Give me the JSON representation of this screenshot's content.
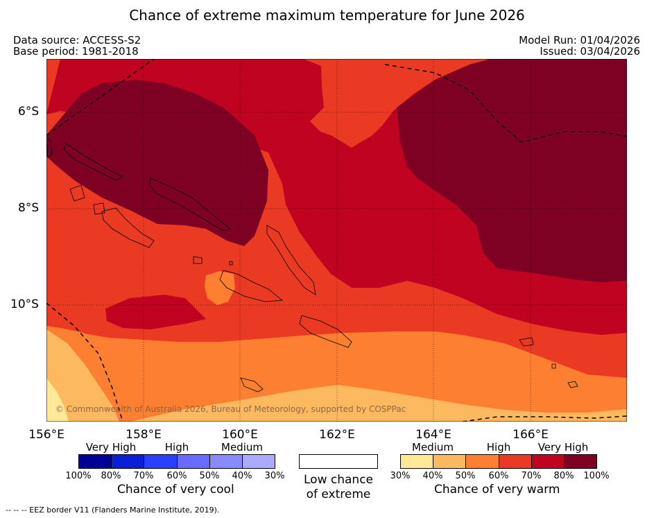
{
  "title": "Chance of extreme maximum temperature for June 2026",
  "meta": {
    "data_source": "Data source: ACCESS-S2",
    "base_period": "Base period: 1981-2018",
    "model_run": "Model Run: 01/04/2026",
    "issued": "Issued: 03/04/2026"
  },
  "axes": {
    "lat_labels": [
      "6°S",
      "8°S",
      "10°S"
    ],
    "lon_labels": [
      "156°E",
      "158°E",
      "160°E",
      "162°E",
      "164°E",
      "166°E"
    ]
  },
  "copyright": "© Commonwealth of Australia 2026, Bureau of Meteorology, supported by COSPPac",
  "legend": {
    "cool": {
      "categories": [
        "Very High",
        "High",
        "Medium"
      ],
      "percents": [
        "100%",
        "80%",
        "70%",
        "60%",
        "50%",
        "40%",
        "30%"
      ],
      "colors": [
        "#000099",
        "#0a1fd6",
        "#2a40ff",
        "#6a6aff",
        "#8a8aff",
        "#aaaaff"
      ],
      "caption": "Chance of very cool"
    },
    "neutral": {
      "caption_line1": "Low chance",
      "caption_line2": "of extreme"
    },
    "warm": {
      "categories": [
        "Medium",
        "High",
        "Very High"
      ],
      "percents": [
        "30%",
        "40%",
        "50%",
        "60%",
        "70%",
        "80%",
        "100%"
      ],
      "colors": [
        "#ffe897",
        "#fdb960",
        "#fc7f32",
        "#eb3a23",
        "#bf0321",
        "#7e0022"
      ],
      "caption": "Chance of very warm"
    }
  },
  "footer": "--  --  -- EEZ border V11 (Flanders Marine Institute, 2019)."
}
